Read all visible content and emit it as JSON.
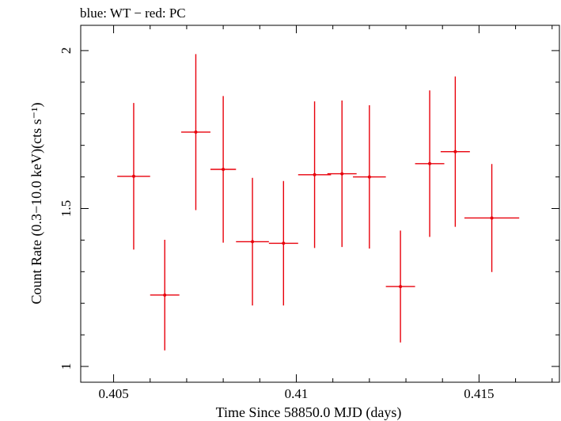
{
  "chart_data": {
    "type": "scatter",
    "title": "blue: WT − red: PC",
    "xlabel": "Time Since 58850.0 MJD (days)",
    "ylabel": "Count Rate (0.3−10.0 keV)(cts s⁻¹)",
    "xlim": [
      0.4041,
      0.4172
    ],
    "ylim": [
      0.95,
      2.08
    ],
    "x_ticks": [
      0.405,
      0.41,
      0.415
    ],
    "x_tick_labels": [
      "0.405",
      "0.41",
      "0.415"
    ],
    "y_ticks": [
      1,
      1.5,
      2
    ],
    "y_tick_labels": [
      "1",
      "1.5",
      "2"
    ],
    "grid": false,
    "legend": "none",
    "series": [
      {
        "color": "#e8000b",
        "points": [
          {
            "x": 0.40555,
            "xerr": 0.00045,
            "y": 1.602,
            "yerr": 0.232
          },
          {
            "x": 0.4064,
            "xerr": 0.0004,
            "y": 1.226,
            "yerr": 0.175
          },
          {
            "x": 0.40725,
            "xerr": 0.0004,
            "y": 1.742,
            "yerr": 0.247
          },
          {
            "x": 0.408,
            "xerr": 0.00035,
            "y": 1.624,
            "yerr": 0.232
          },
          {
            "x": 0.4088,
            "xerr": 0.00045,
            "y": 1.395,
            "yerr": 0.202
          },
          {
            "x": 0.40965,
            "xerr": 0.0004,
            "y": 1.39,
            "yerr": 0.197
          },
          {
            "x": 0.4105,
            "xerr": 0.00045,
            "y": 1.607,
            "yerr": 0.232
          },
          {
            "x": 0.41125,
            "xerr": 0.0004,
            "y": 1.61,
            "yerr": 0.232
          },
          {
            "x": 0.412,
            "xerr": 0.00045,
            "y": 1.6,
            "yerr": 0.227
          },
          {
            "x": 0.41285,
            "xerr": 0.0004,
            "y": 1.253,
            "yerr": 0.177
          },
          {
            "x": 0.41365,
            "xerr": 0.0004,
            "y": 1.642,
            "yerr": 0.232
          },
          {
            "x": 0.41435,
            "xerr": 0.0004,
            "y": 1.68,
            "yerr": 0.238
          },
          {
            "x": 0.41535,
            "xerr": 0.00075,
            "y": 1.47,
            "yerr": 0.171
          }
        ]
      }
    ]
  }
}
